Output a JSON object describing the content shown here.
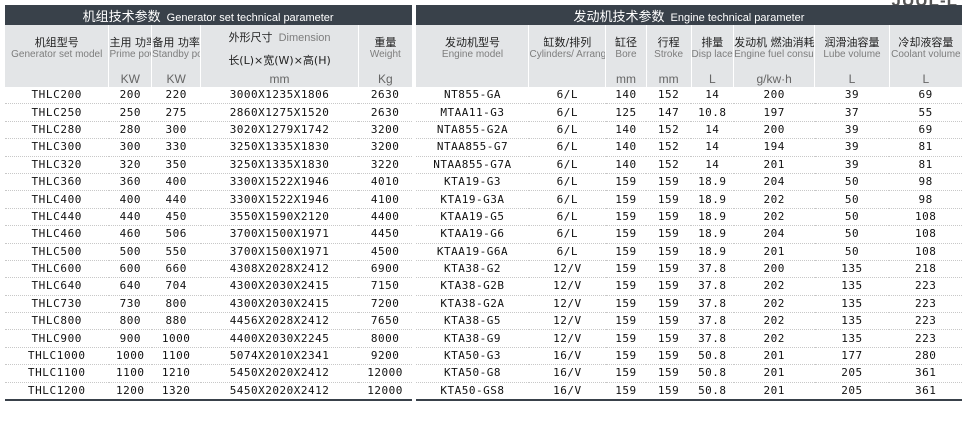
{
  "brand_fragment": "JUUL-L",
  "generator_section": {
    "title_zh": "机组技术参数",
    "title_en": "Generator set technical parameter",
    "columns": {
      "model": {
        "zh": "机组型号",
        "en": "Generator set model"
      },
      "prime": {
        "zh": "主用 功率",
        "en": "Prime power"
      },
      "standby": {
        "zh": "备用 功率",
        "en": "Standby power"
      },
      "dimension": {
        "zh": "外形尺寸",
        "en": "Dimension",
        "sub": "长(L)×宽(W)×高(H)"
      },
      "weight": {
        "zh": "重量",
        "en": "Weight"
      }
    },
    "units": {
      "prime": "KW",
      "standby": "KW",
      "dimension": "mm",
      "weight": "Kg"
    }
  },
  "engine_section": {
    "title_zh": "发动机技术参数",
    "title_en": "Engine technical parameter",
    "columns": {
      "engine_model": {
        "zh": "发动机型号",
        "en": "Engine model"
      },
      "cylinders": {
        "zh": "缸数/排列",
        "en": "Cylinders/ Arrangement"
      },
      "bore": {
        "zh": "缸径",
        "en": "Bore"
      },
      "stroke": {
        "zh": "行程",
        "en": "Stroke"
      },
      "displacement": {
        "zh": "排量",
        "en": "Disp lacement"
      },
      "fuel": {
        "zh": "发动机 燃油消耗率",
        "en": "Engine fuel consumption rate"
      },
      "lube": {
        "zh": "润滑油容量",
        "en": "Lube volume"
      },
      "coolant": {
        "zh": "冷却液容量",
        "en": "Coolant volume"
      }
    },
    "units": {
      "bore": "mm",
      "stroke": "mm",
      "displacement": "L",
      "fuel": "g/kw·h",
      "lube": "L",
      "coolant": "L"
    }
  },
  "rows": [
    {
      "model": "THLC200",
      "prime": "200",
      "standby": "220",
      "dimension": "3000X1235X1806",
      "weight": "2630",
      "engine": "NT855-GA",
      "cyl": "6/L",
      "bore": "140",
      "stroke": "152",
      "disp": "14",
      "fuel": "200",
      "lube": "39",
      "coolant": "69"
    },
    {
      "model": "THLC250",
      "prime": "250",
      "standby": "275",
      "dimension": "2860X1275X1520",
      "weight": "2630",
      "engine": "MTAA11-G3",
      "cyl": "6/L",
      "bore": "125",
      "stroke": "147",
      "disp": "10.8",
      "fuel": "197",
      "lube": "37",
      "coolant": "55"
    },
    {
      "model": "THLC280",
      "prime": "280",
      "standby": "300",
      "dimension": "3020X1279X1742",
      "weight": "3200",
      "engine": "NTA855-G2A",
      "cyl": "6/L",
      "bore": "140",
      "stroke": "152",
      "disp": "14",
      "fuel": "200",
      "lube": "39",
      "coolant": "69"
    },
    {
      "model": "THLC300",
      "prime": "300",
      "standby": "330",
      "dimension": "3250X1335X1830",
      "weight": "3200",
      "engine": "NTAA855-G7",
      "cyl": "6/L",
      "bore": "140",
      "stroke": "152",
      "disp": "14",
      "fuel": "194",
      "lube": "39",
      "coolant": "81"
    },
    {
      "model": "THLC320",
      "prime": "320",
      "standby": "350",
      "dimension": "3250X1335X1830",
      "weight": "3220",
      "engine": "NTAA855-G7A",
      "cyl": "6/L",
      "bore": "140",
      "stroke": "152",
      "disp": "14",
      "fuel": "201",
      "lube": "39",
      "coolant": "81"
    },
    {
      "model": "THLC360",
      "prime": "360",
      "standby": "400",
      "dimension": "3300X1522X1946",
      "weight": "4010",
      "engine": "KTA19-G3",
      "cyl": "6/L",
      "bore": "159",
      "stroke": "159",
      "disp": "18.9",
      "fuel": "204",
      "lube": "50",
      "coolant": "98"
    },
    {
      "model": "THLC400",
      "prime": "400",
      "standby": "440",
      "dimension": "3300X1522X1946",
      "weight": "4100",
      "engine": "KTA19-G3A",
      "cyl": "6/L",
      "bore": "159",
      "stroke": "159",
      "disp": "18.9",
      "fuel": "202",
      "lube": "50",
      "coolant": "98"
    },
    {
      "model": "THLC440",
      "prime": "440",
      "standby": "450",
      "dimension": "3550X1590X2120",
      "weight": "4400",
      "engine": "KTAA19-G5",
      "cyl": "6/L",
      "bore": "159",
      "stroke": "159",
      "disp": "18.9",
      "fuel": "202",
      "lube": "50",
      "coolant": "108"
    },
    {
      "model": "THLC460",
      "prime": "460",
      "standby": "506",
      "dimension": "3700X1500X1971",
      "weight": "4450",
      "engine": "KTAA19-G6",
      "cyl": "6/L",
      "bore": "159",
      "stroke": "159",
      "disp": "18.9",
      "fuel": "204",
      "lube": "50",
      "coolant": "108"
    },
    {
      "model": "THLC500",
      "prime": "500",
      "standby": "550",
      "dimension": "3700X1500X1971",
      "weight": "4500",
      "engine": "KTAA19-G6A",
      "cyl": "6/L",
      "bore": "159",
      "stroke": "159",
      "disp": "18.9",
      "fuel": "201",
      "lube": "50",
      "coolant": "108"
    },
    {
      "model": "THLC600",
      "prime": "600",
      "standby": "660",
      "dimension": "4308X2028X2412",
      "weight": "6900",
      "engine": "KTA38-G2",
      "cyl": "12/V",
      "bore": "159",
      "stroke": "159",
      "disp": "37.8",
      "fuel": "200",
      "lube": "135",
      "coolant": "218"
    },
    {
      "model": "THLC640",
      "prime": "640",
      "standby": "704",
      "dimension": "4300X2030X2415",
      "weight": "7150",
      "engine": "KTA38-G2B",
      "cyl": "12/V",
      "bore": "159",
      "stroke": "159",
      "disp": "37.8",
      "fuel": "202",
      "lube": "135",
      "coolant": "223"
    },
    {
      "model": "THLC730",
      "prime": "730",
      "standby": "800",
      "dimension": "4300X2030X2415",
      "weight": "7200",
      "engine": "KTA38-G2A",
      "cyl": "12/V",
      "bore": "159",
      "stroke": "159",
      "disp": "37.8",
      "fuel": "202",
      "lube": "135",
      "coolant": "223"
    },
    {
      "model": "THLC800",
      "prime": "800",
      "standby": "880",
      "dimension": "4456X2028X2412",
      "weight": "7650",
      "engine": "KTA38-G5",
      "cyl": "12/V",
      "bore": "159",
      "stroke": "159",
      "disp": "37.8",
      "fuel": "202",
      "lube": "135",
      "coolant": "223"
    },
    {
      "model": "THLC900",
      "prime": "900",
      "standby": "1000",
      "dimension": "4400X2030X2245",
      "weight": "8000",
      "engine": "KTA38-G9",
      "cyl": "12/V",
      "bore": "159",
      "stroke": "159",
      "disp": "37.8",
      "fuel": "202",
      "lube": "135",
      "coolant": "223"
    },
    {
      "model": "THLC1000",
      "prime": "1000",
      "standby": "1100",
      "dimension": "5074X2010X2341",
      "weight": "9200",
      "engine": "KTA50-G3",
      "cyl": "16/V",
      "bore": "159",
      "stroke": "159",
      "disp": "50.8",
      "fuel": "201",
      "lube": "177",
      "coolant": "280"
    },
    {
      "model": "THLC1100",
      "prime": "1100",
      "standby": "1210",
      "dimension": "5450X2020X2412",
      "weight": "12000",
      "engine": "KTA50-G8",
      "cyl": "16/V",
      "bore": "159",
      "stroke": "159",
      "disp": "50.8",
      "fuel": "201",
      "lube": "205",
      "coolant": "361"
    },
    {
      "model": "THLC1200",
      "prime": "1200",
      "standby": "1320",
      "dimension": "5450X2020X2412",
      "weight": "12000",
      "engine": "KTA50-GS8",
      "cyl": "16/V",
      "bore": "159",
      "stroke": "159",
      "disp": "50.8",
      "fuel": "201",
      "lube": "205",
      "coolant": "361"
    }
  ]
}
